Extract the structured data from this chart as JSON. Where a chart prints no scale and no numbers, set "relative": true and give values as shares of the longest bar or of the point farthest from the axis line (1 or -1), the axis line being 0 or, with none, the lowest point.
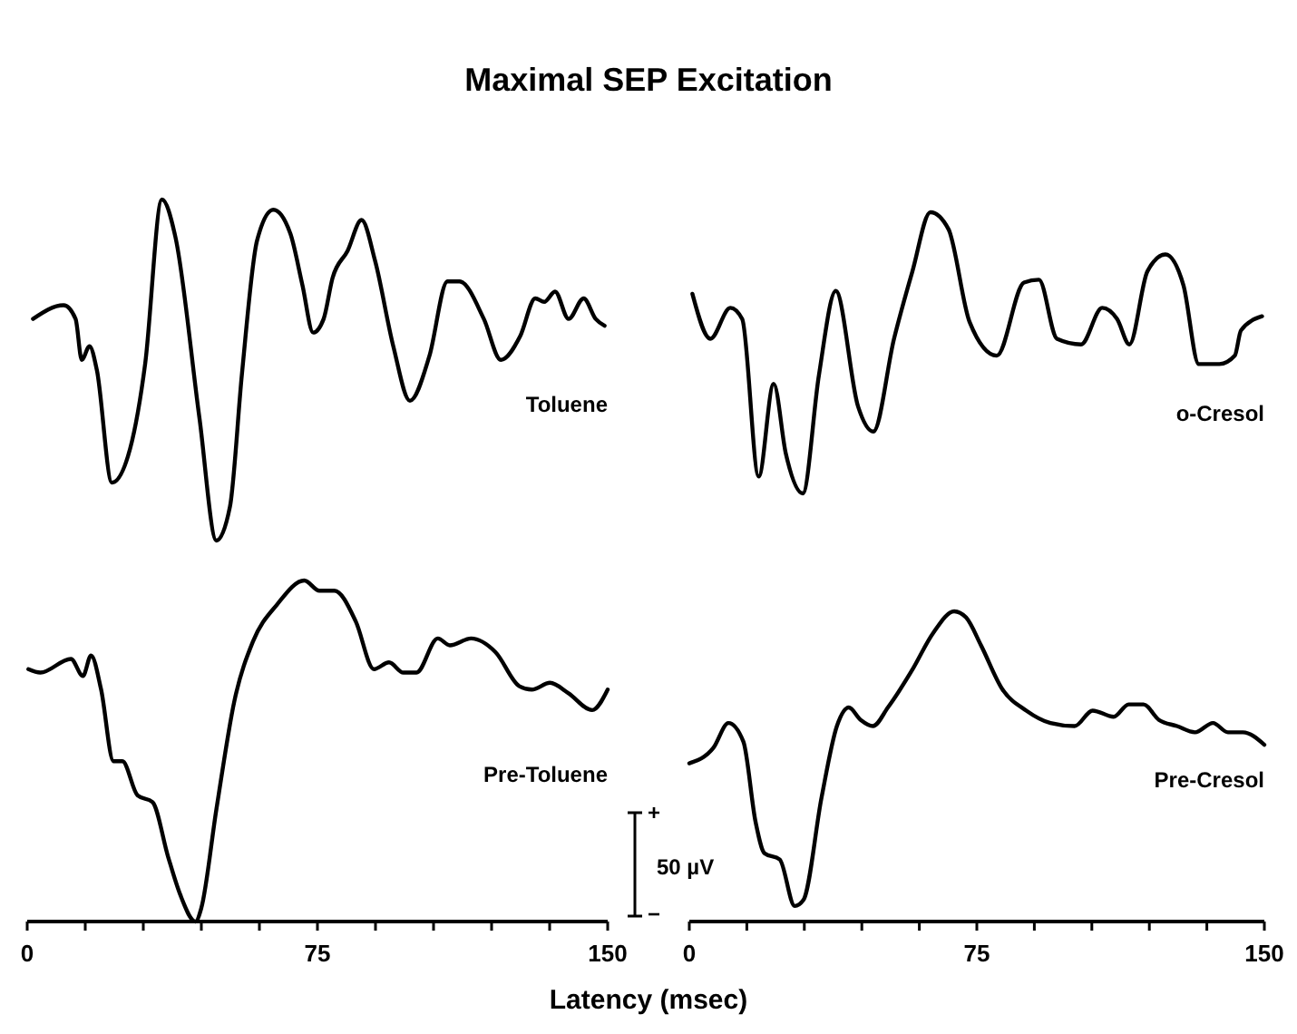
{
  "chart_data": [
    {
      "type": "line",
      "title": "Maximal SEP Excitation",
      "relative": true,
      "xlim": [
        0,
        150
      ],
      "tick_labels": false,
      "series": [
        {
          "name": "Toluene",
          "color": "#000000",
          "x": [
            1.5,
            9.4,
            12.5,
            14.1,
            16.1,
            18,
            21.9,
            26.6,
            30.5,
            34.8,
            38.3,
            44.5,
            48.9,
            52.4,
            55.5,
            59.4,
            63.6,
            68,
            71.1,
            73.9,
            76.6,
            78.9,
            82.8,
            86.4,
            89.9,
            94.6,
            98.9,
            103.9,
            108.6,
            111.7,
            118,
            122.4,
            127.4,
            131.3,
            133.6,
            136.4,
            139.9,
            143.8,
            146.9,
            149.2
          ],
          "values": [
            0.65,
            0.69,
            0.65,
            0.53,
            0.57,
            0.5,
            0.17,
            0.27,
            0.52,
            1.0,
            0.89,
            0.36,
            0.0,
            0.1,
            0.49,
            0.88,
            0.97,
            0.9,
            0.75,
            0.61,
            0.65,
            0.77,
            0.85,
            0.94,
            0.82,
            0.57,
            0.41,
            0.54,
            0.76,
            0.76,
            0.65,
            0.53,
            0.6,
            0.71,
            0.7,
            0.73,
            0.65,
            0.71,
            0.65,
            0.63
          ]
        }
      ]
    },
    {
      "type": "line",
      "relative": true,
      "xlim": [
        0,
        150
      ],
      "tick_labels": false,
      "series": [
        {
          "name": "o-Cresol",
          "color": "#000000",
          "x": [
            0.8,
            5.5,
            10.7,
            13.8,
            18.1,
            22,
            25.2,
            29.6,
            33.8,
            38.2,
            44,
            48,
            53.4,
            58.2,
            62.9,
            67.6,
            73.1,
            80.2,
            87.3,
            91.2,
            95.9,
            102.2,
            107.7,
            111.6,
            114.8,
            119.5,
            124.2,
            128.9,
            132.9,
            138.3,
            142.3,
            143.9,
            149.4
          ],
          "values": [
            0.71,
            0.55,
            0.66,
            0.62,
            0.06,
            0.39,
            0.14,
            0.0,
            0.42,
            0.72,
            0.31,
            0.22,
            0.55,
            0.79,
            1.0,
            0.94,
            0.61,
            0.49,
            0.75,
            0.76,
            0.55,
            0.53,
            0.66,
            0.62,
            0.53,
            0.79,
            0.85,
            0.74,
            0.46,
            0.46,
            0.49,
            0.58,
            0.63
          ]
        }
      ]
    },
    {
      "type": "line",
      "relative": true,
      "xlim": [
        0,
        150
      ],
      "tick_labels": "x",
      "xlabel": "Latency (msec)",
      "annotations": [
        "+",
        "50 µV",
        "−"
      ],
      "xticks": [
        0,
        {
          "value": 15,
          "label": null
        },
        {
          "value": 30,
          "label": null
        },
        {
          "value": 45,
          "label": null
        },
        {
          "value": 60,
          "label": null
        },
        75,
        {
          "value": 90,
          "label": null
        },
        {
          "value": 105,
          "label": null
        },
        {
          "value": 120,
          "label": null
        },
        {
          "value": 135,
          "label": null
        },
        150
      ],
      "series": [
        {
          "name": "Pre-Toluene",
          "color": "#000000",
          "x": [
            0.3,
            3.4,
            11.3,
            14.4,
            16.5,
            19.1,
            22.3,
            24.6,
            28.5,
            32.4,
            36.4,
            39.5,
            43.5,
            45,
            48.9,
            53.6,
            58.3,
            64.6,
            71.6,
            75.5,
            79.4,
            84.9,
            89.6,
            93.5,
            97.2,
            100.6,
            106.1,
            109.2,
            114.7,
            121,
            127.2,
            130.4,
            135.1,
            139.8,
            146,
            150
          ],
          "values": [
            0.74,
            0.73,
            0.77,
            0.72,
            0.78,
            0.68,
            0.47,
            0.47,
            0.37,
            0.35,
            0.19,
            0.08,
            0.0,
            0.04,
            0.33,
            0.65,
            0.82,
            0.93,
            1.0,
            0.97,
            0.97,
            0.88,
            0.74,
            0.76,
            0.73,
            0.73,
            0.83,
            0.81,
            0.83,
            0.79,
            0.69,
            0.68,
            0.7,
            0.67,
            0.62,
            0.68
          ]
        }
      ]
    },
    {
      "type": "line",
      "relative": true,
      "xlim": [
        0,
        150
      ],
      "tick_labels": "x",
      "xticks": [
        0,
        {
          "value": 15,
          "label": null
        },
        {
          "value": 30,
          "label": null
        },
        {
          "value": 45,
          "label": null
        },
        {
          "value": 60,
          "label": null
        },
        75,
        {
          "value": 90,
          "label": null
        },
        {
          "value": 105,
          "label": null
        },
        {
          "value": 120,
          "label": null
        },
        {
          "value": 135,
          "label": null
        },
        150
      ],
      "series": [
        {
          "name": "Pre-Cresol",
          "color": "#000000",
          "x": [
            0,
            6.3,
            10.2,
            14.1,
            17.3,
            19.6,
            23.6,
            27.5,
            29.8,
            34.5,
            38.5,
            41.6,
            44.7,
            47.9,
            51.8,
            58.1,
            63.6,
            69.1,
            72.2,
            76.1,
            81.6,
            87.9,
            94.2,
            100.5,
            105.2,
            110.7,
            114.6,
            118.5,
            122.5,
            127.2,
            131.9,
            136.6,
            140.5,
            144.4,
            150
          ],
          "values": [
            0.51,
            0.56,
            0.64,
            0.58,
            0.32,
            0.22,
            0.2,
            0.05,
            0.07,
            0.4,
            0.63,
            0.69,
            0.65,
            0.63,
            0.69,
            0.81,
            0.93,
            1.0,
            0.98,
            0.89,
            0.75,
            0.68,
            0.64,
            0.63,
            0.68,
            0.66,
            0.7,
            0.7,
            0.65,
            0.63,
            0.61,
            0.64,
            0.61,
            0.61,
            0.57
          ]
        }
      ]
    }
  ]
}
